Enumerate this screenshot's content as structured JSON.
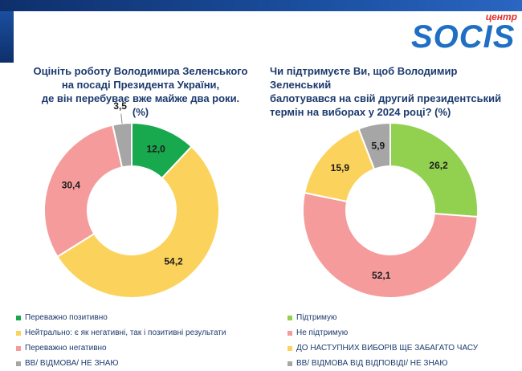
{
  "logo": {
    "centre": "центр",
    "word": "SOCIS"
  },
  "chart_data": [
    {
      "type": "pie",
      "title": "Оцініть роботу Володимира Зеленського на посаді Президента України, де він перебуває вже майже два роки. (%)",
      "title_lines": [
        "Оцініть роботу Володимира Зеленського",
        "на посаді Президента України,",
        "де він перебуває вже майже два роки. (%)"
      ],
      "categories": [
        "Переважно позитивно",
        "Нейтрально: є як негативні, так і позитивні результати",
        "Переважно негативно",
        "ВВ/ ВІДМОВА/ НЕ ЗНАЮ"
      ],
      "values": [
        12.0,
        54.2,
        30.4,
        3.5
      ],
      "labels": [
        "12,0",
        "54,2",
        "30,4",
        "3,5"
      ],
      "colors": [
        "#18a84e",
        "#fbd35c",
        "#f59b9b",
        "#a6a6a6"
      ],
      "legend_position": "bottom"
    },
    {
      "type": "pie",
      "title": "Чи підтримуєте Ви, щоб Володимир Зеленський балотувався на свій другий президентський термін на виборах у 2024 році? (%)",
      "title_lines": [
        "Чи підтримуєте Ви, щоб Володимир Зеленський",
        "балотувався на свій другий президентський",
        "термін на виборах у 2024 році? (%)"
      ],
      "categories": [
        "Підтримую",
        "Не підтримую",
        "ДО НАСТУПНИХ ВИБОРІВ ЩЕ ЗАБАГАТО ЧАСУ",
        "ВВ/ ВІДМОВА ВІД ВІДПОВІДІ/ НЕ ЗНАЮ"
      ],
      "values": [
        26.2,
        52.1,
        15.9,
        5.9
      ],
      "labels": [
        "26,2",
        "52,1",
        "15,9",
        "5,9"
      ],
      "colors": [
        "#92d050",
        "#f59b9b",
        "#fbd35c",
        "#a6a6a6"
      ],
      "legend_position": "bottom"
    }
  ]
}
